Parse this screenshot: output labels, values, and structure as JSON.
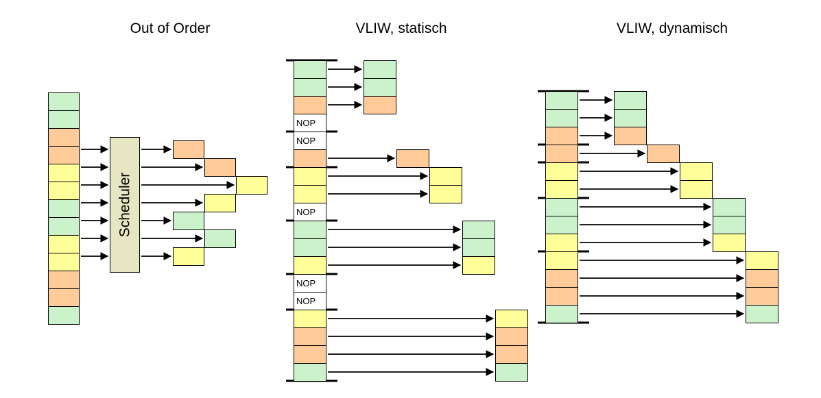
{
  "palette": {
    "green": "#ccf2cc",
    "orange": "#ffcc99",
    "yellow": "#ffff99",
    "nop_fill": "#ffffff",
    "scheduler_fill": "#e6e6c3",
    "border": "#000000",
    "arrow": "#000000",
    "background": "#ffffff"
  },
  "sections": {
    "out_of_order": {
      "title": "Out of Order",
      "scheduler_label": "Scheduler",
      "stream": [
        "green",
        "green",
        "orange",
        "orange",
        "yellow",
        "yellow",
        "green",
        "green",
        "yellow",
        "yellow",
        "orange",
        "orange",
        "green"
      ],
      "issued_slots": [
        {
          "color": "orange",
          "slot": 0
        },
        {
          "color": "orange",
          "slot": 1
        },
        {
          "color": "yellow",
          "slot": 2
        },
        {
          "color": "yellow",
          "slot": 1
        },
        {
          "color": "green",
          "slot": 0
        },
        {
          "color": "green",
          "slot": 1
        },
        {
          "color": "yellow",
          "slot": 0
        }
      ]
    },
    "vliw_static": {
      "title": "VLIW, statisch",
      "nop_label": "NOP",
      "rows": [
        {
          "type": "instr",
          "color": "green",
          "target_col": 0
        },
        {
          "type": "instr",
          "color": "green",
          "target_col": 0
        },
        {
          "type": "instr",
          "color": "orange",
          "target_col": 0
        },
        {
          "type": "nop"
        },
        {
          "type": "nop"
        },
        {
          "type": "instr",
          "color": "orange",
          "target_col": 1
        },
        {
          "type": "instr",
          "color": "yellow",
          "target_col": 2
        },
        {
          "type": "instr",
          "color": "yellow",
          "target_col": 2
        },
        {
          "type": "nop"
        },
        {
          "type": "instr",
          "color": "green",
          "target_col": 3
        },
        {
          "type": "instr",
          "color": "green",
          "target_col": 3
        },
        {
          "type": "instr",
          "color": "yellow",
          "target_col": 3
        },
        {
          "type": "nop"
        },
        {
          "type": "nop"
        },
        {
          "type": "instr",
          "color": "yellow",
          "target_col": 4
        },
        {
          "type": "instr",
          "color": "orange",
          "target_col": 4
        },
        {
          "type": "instr",
          "color": "orange",
          "target_col": 4
        },
        {
          "type": "instr",
          "color": "green",
          "target_col": 4
        }
      ],
      "bundle_lines_after": [
        -1,
        3,
        5,
        8,
        11,
        13,
        17
      ]
    },
    "vliw_dynamic": {
      "title": "VLIW, dynamisch",
      "rows": [
        {
          "type": "instr",
          "color": "green",
          "target_col": 0
        },
        {
          "type": "instr",
          "color": "green",
          "target_col": 0
        },
        {
          "type": "instr",
          "color": "orange",
          "target_col": 0
        },
        {
          "type": "instr",
          "color": "orange",
          "target_col": 1
        },
        {
          "type": "instr",
          "color": "yellow",
          "target_col": 2
        },
        {
          "type": "instr",
          "color": "yellow",
          "target_col": 2
        },
        {
          "type": "instr",
          "color": "green",
          "target_col": 3
        },
        {
          "type": "instr",
          "color": "green",
          "target_col": 3
        },
        {
          "type": "instr",
          "color": "yellow",
          "target_col": 3
        },
        {
          "type": "instr",
          "color": "yellow",
          "target_col": 4
        },
        {
          "type": "instr",
          "color": "orange",
          "target_col": 4
        },
        {
          "type": "instr",
          "color": "orange",
          "target_col": 4
        },
        {
          "type": "instr",
          "color": "green",
          "target_col": 4
        }
      ],
      "bundle_lines_after": [
        -1,
        2,
        3,
        5,
        8,
        12
      ]
    }
  }
}
